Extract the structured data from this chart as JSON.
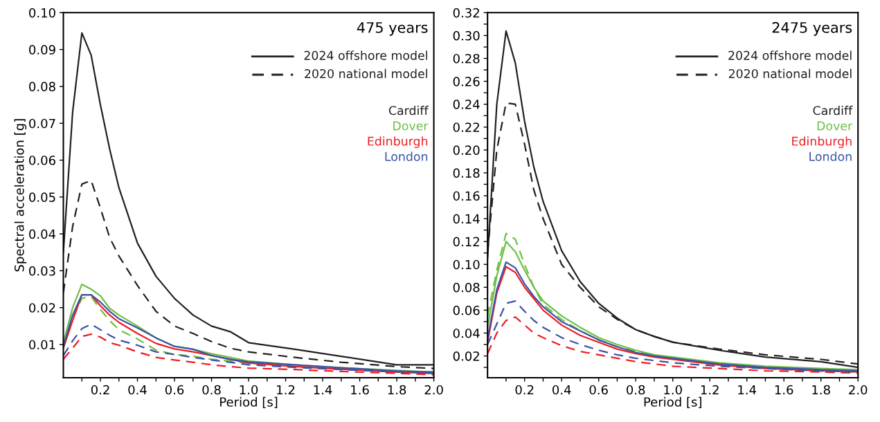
{
  "chart_data": [
    {
      "type": "line",
      "title": "475 years",
      "xlabel": "Period [s]",
      "ylabel": "Spectral acceleration [g]",
      "annotations": [
        "2024 offshore model",
        "2020 national model"
      ],
      "x": [
        0,
        0.05,
        0.1,
        0.15,
        0.2,
        0.25,
        0.3,
        0.4,
        0.5,
        0.6,
        0.7,
        0.8,
        0.9,
        1.0,
        1.25,
        1.5,
        1.8,
        2.0
      ],
      "xlim": [
        0,
        2.0
      ],
      "xticks": [
        {
          "value": 0.1,
          "label": null
        },
        0.2,
        {
          "value": 0.3,
          "label": null
        },
        0.4,
        {
          "value": 0.5,
          "label": null
        },
        0.6,
        {
          "value": 0.7,
          "label": null
        },
        0.8,
        {
          "value": 0.9,
          "label": null
        },
        {
          "value": 1,
          "label": "1.0"
        },
        {
          "value": 1.1,
          "label": null
        },
        1.2,
        {
          "value": 1.3,
          "label": null
        },
        1.4,
        {
          "value": 1.5,
          "label": null
        },
        1.6,
        {
          "value": 1.7,
          "label": null
        },
        1.8,
        {
          "value": 1.9,
          "label": null
        },
        {
          "value": 2,
          "label": "2.0"
        }
      ],
      "ylim": [
        0.001,
        0.1
      ],
      "yticks": [
        0.01,
        0.02,
        0.03,
        0.04,
        0.05,
        0.06,
        0.07,
        0.08,
        0.09,
        {
          "value": 0.1,
          "label": "0.10"
        }
      ],
      "grid": false,
      "series": [
        {
          "name": "Cardiff",
          "color": "#231f20",
          "line_style": "solid",
          "values": [
            0.035,
            0.073,
            0.0945,
            0.0885,
            0.075,
            0.063,
            0.0525,
            0.0375,
            0.0285,
            0.0225,
            0.018,
            0.015,
            0.0135,
            0.0105,
            0.0087,
            0.0068,
            0.0045,
            0.0045
          ]
        },
        {
          "color": "#231f20",
          "line_style": "dashed",
          "values": [
            0.024,
            0.042,
            0.0535,
            0.0545,
            0.047,
            0.039,
            0.034,
            0.026,
            0.019,
            0.015,
            0.013,
            0.0108,
            0.009,
            0.008,
            0.0065,
            0.0052,
            0.004,
            0.0035
          ]
        },
        {
          "name": "Dover",
          "color": "#6cbf45",
          "line_style": "solid",
          "values": [
            0.0105,
            0.02,
            0.0263,
            0.025,
            0.0232,
            0.0198,
            0.018,
            0.015,
            0.0118,
            0.0095,
            0.0087,
            0.0075,
            0.0065,
            0.0055,
            0.0045,
            0.0037,
            0.003,
            0.0025
          ]
        },
        {
          "color": "#6cbf45",
          "line_style": "dashed",
          "values": [
            0.0095,
            0.017,
            0.0225,
            0.023,
            0.0195,
            0.0165,
            0.014,
            0.0115,
            0.0085,
            0.0073,
            0.0068,
            0.006,
            0.0055,
            0.005,
            0.004,
            0.0035,
            0.0028,
            0.0025
          ]
        },
        {
          "name": "Edinburgh",
          "color": "#ed1c24",
          "line_style": "solid",
          "values": [
            0.009,
            0.0165,
            0.0235,
            0.0235,
            0.0205,
            0.018,
            0.016,
            0.013,
            0.0103,
            0.0088,
            0.008,
            0.007,
            0.006,
            0.005,
            0.004,
            0.0033,
            0.0025,
            0.0022
          ]
        },
        {
          "color": "#ed1c24",
          "line_style": "dashed",
          "values": [
            0.006,
            0.009,
            0.0122,
            0.0128,
            0.012,
            0.0105,
            0.0098,
            0.008,
            0.0065,
            0.0058,
            0.0052,
            0.0045,
            0.004,
            0.0036,
            0.0032,
            0.0027,
            0.0022,
            0.0018
          ]
        },
        {
          "name": "London",
          "color": "#3a53a4",
          "line_style": "solid",
          "values": [
            0.0095,
            0.018,
            0.0235,
            0.0235,
            0.0215,
            0.019,
            0.017,
            0.0145,
            0.0118,
            0.0095,
            0.0087,
            0.007,
            0.006,
            0.0053,
            0.0045,
            0.0037,
            0.0028,
            0.0025
          ]
        },
        {
          "color": "#3a53a4",
          "line_style": "dashed",
          "values": [
            0.007,
            0.011,
            0.0143,
            0.0155,
            0.014,
            0.0125,
            0.0112,
            0.0098,
            0.008,
            0.0073,
            0.0065,
            0.0058,
            0.0052,
            0.0045,
            0.0038,
            0.0032,
            0.0026,
            0.0022
          ]
        }
      ]
    },
    {
      "type": "line",
      "title": "2475 years",
      "xlabel": "Period [s]",
      "annotations": [
        "2024 offshore model",
        "2020 national model"
      ],
      "x": [
        0,
        0.05,
        0.1,
        0.15,
        0.2,
        0.25,
        0.3,
        0.4,
        0.5,
        0.6,
        0.7,
        0.8,
        0.9,
        1.0,
        1.25,
        1.5,
        1.8,
        2.0
      ],
      "xlim": [
        0,
        2.0
      ],
      "xticks": [
        {
          "value": 0.1,
          "label": null
        },
        0.2,
        {
          "value": 0.3,
          "label": null
        },
        0.4,
        {
          "value": 0.5,
          "label": null
        },
        0.6,
        {
          "value": 0.7,
          "label": null
        },
        0.8,
        {
          "value": 0.9,
          "label": null
        },
        {
          "value": 1,
          "label": "1.0"
        },
        {
          "value": 1.1,
          "label": null
        },
        1.2,
        {
          "value": 1.3,
          "label": null
        },
        1.4,
        {
          "value": 1.5,
          "label": null
        },
        1.6,
        {
          "value": 1.7,
          "label": null
        },
        1.8,
        {
          "value": 1.9,
          "label": null
        },
        {
          "value": 2,
          "label": "2.0"
        }
      ],
      "ylim": [
        0.001,
        0.32
      ],
      "yticks": [
        {
          "value": 0.01,
          "label": null
        },
        0.02,
        {
          "value": 0.03,
          "label": null
        },
        0.04,
        {
          "value": 0.05,
          "label": null
        },
        0.06,
        {
          "value": 0.07,
          "label": null
        },
        0.08,
        {
          "value": 0.09,
          "label": null
        },
        {
          "value": 0.1,
          "label": "0.10"
        },
        {
          "value": 0.11,
          "label": null
        },
        0.12,
        {
          "value": 0.13,
          "label": null
        },
        0.14,
        {
          "value": 0.15,
          "label": null
        },
        0.16,
        {
          "value": 0.17,
          "label": null
        },
        0.18,
        {
          "value": 0.19,
          "label": null
        },
        {
          "value": 0.2,
          "label": "0.20"
        },
        {
          "value": 0.21,
          "label": null
        },
        0.22,
        {
          "value": 0.23,
          "label": null
        },
        0.24,
        {
          "value": 0.25,
          "label": null
        },
        0.26,
        {
          "value": 0.27,
          "label": null
        },
        0.28,
        {
          "value": 0.29,
          "label": null
        },
        {
          "value": 0.3,
          "label": "0.30"
        },
        {
          "value": 0.31,
          "label": null
        },
        0.32
      ],
      "grid": false,
      "series": [
        {
          "name": "Cardiff",
          "color": "#231f20",
          "line_style": "solid",
          "values": [
            0.105,
            0.24,
            0.304,
            0.276,
            0.225,
            0.185,
            0.155,
            0.112,
            0.085,
            0.066,
            0.053,
            0.043,
            0.037,
            0.032,
            0.025,
            0.019,
            0.015,
            0.01
          ]
        },
        {
          "color": "#231f20",
          "line_style": "dashed",
          "values": [
            0.11,
            0.2,
            0.241,
            0.24,
            0.205,
            0.165,
            0.14,
            0.1,
            0.08,
            0.063,
            0.052,
            0.043,
            0.037,
            0.032,
            0.026,
            0.021,
            0.017,
            0.013
          ]
        },
        {
          "name": "Dover",
          "color": "#6cbf45",
          "line_style": "solid",
          "values": [
            0.045,
            0.09,
            0.12,
            0.111,
            0.095,
            0.08,
            0.068,
            0.055,
            0.045,
            0.036,
            0.03,
            0.025,
            0.021,
            0.019,
            0.014,
            0.011,
            0.009,
            0.008
          ]
        },
        {
          "color": "#6cbf45",
          "line_style": "dashed",
          "values": [
            0.055,
            0.095,
            0.127,
            0.122,
            0.1,
            0.08,
            0.065,
            0.052,
            0.042,
            0.034,
            0.028,
            0.024,
            0.02,
            0.018,
            0.013,
            0.01,
            0.008,
            0.007
          ]
        },
        {
          "name": "Edinburgh",
          "color": "#ed1c24",
          "line_style": "solid",
          "values": [
            0.032,
            0.075,
            0.098,
            0.093,
            0.08,
            0.07,
            0.06,
            0.047,
            0.038,
            0.032,
            0.026,
            0.022,
            0.019,
            0.017,
            0.012,
            0.009,
            0.007,
            0.006
          ]
        },
        {
          "color": "#ed1c24",
          "line_style": "dashed",
          "values": [
            0.022,
            0.04,
            0.051,
            0.054,
            0.047,
            0.04,
            0.036,
            0.029,
            0.024,
            0.021,
            0.018,
            0.015,
            0.013,
            0.011,
            0.009,
            0.007,
            0.006,
            0.005
          ]
        },
        {
          "name": "London",
          "color": "#3a53a4",
          "line_style": "solid",
          "values": [
            0.035,
            0.078,
            0.102,
            0.097,
            0.083,
            0.072,
            0.063,
            0.05,
            0.042,
            0.034,
            0.028,
            0.023,
            0.02,
            0.018,
            0.013,
            0.01,
            0.008,
            0.007
          ]
        },
        {
          "color": "#3a53a4",
          "line_style": "dashed",
          "values": [
            0.03,
            0.048,
            0.066,
            0.068,
            0.059,
            0.051,
            0.045,
            0.036,
            0.03,
            0.025,
            0.021,
            0.018,
            0.016,
            0.014,
            0.011,
            0.009,
            0.007,
            0.006
          ]
        }
      ]
    }
  ]
}
